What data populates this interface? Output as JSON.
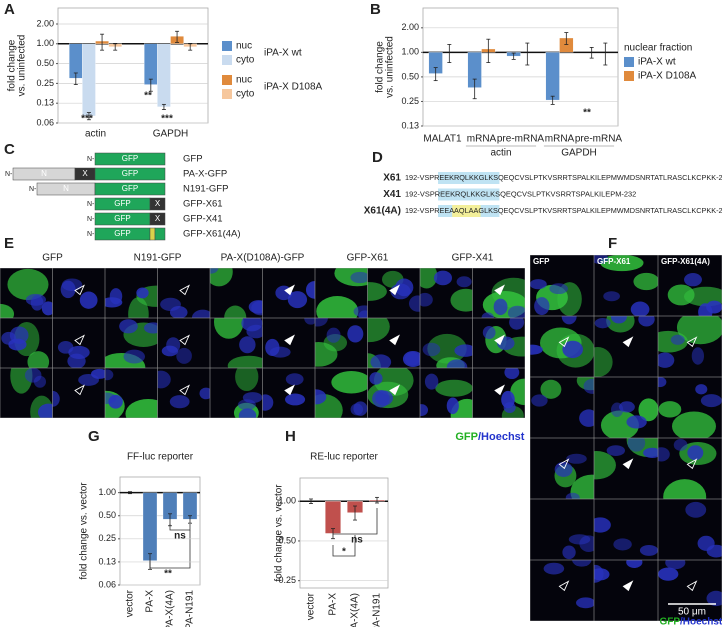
{
  "panel_labels": [
    "A",
    "B",
    "C",
    "D",
    "E",
    "F",
    "G",
    "H"
  ],
  "chart_data": [
    {
      "type": "bar",
      "y_label": [
        "fold change",
        "vs. uninfected"
      ],
      "log_scale": true,
      "grid": true,
      "ylim": [
        0.0625,
        3.5
      ],
      "yticks": [
        {
          "value": 0.0625,
          "label": "0.06"
        },
        {
          "value": 0.125,
          "label": "0.13"
        },
        0.25,
        {
          "value": 0.5,
          "label": "0.50"
        },
        {
          "value": 1,
          "label": "1.00"
        },
        {
          "value": 2,
          "label": "2.00"
        }
      ],
      "reference_line": 1,
      "categories": [
        "actin",
        "GAPDH"
      ],
      "legend_groups": [
        "iPA-X wt",
        "iPA-X D108A"
      ],
      "series": [
        {
          "name": "nuc",
          "color": "#5b8fcb",
          "values": [
            0.3,
            0.24
          ],
          "errors": [
            0.06,
            0.05
          ]
        },
        {
          "name": "cyto",
          "color": "#c9dbef",
          "values": [
            0.08,
            0.11
          ],
          "errors": [
            0.01,
            0.01
          ]
        },
        {
          "name": "nuc",
          "color": "#e08a3c",
          "values": [
            1.1,
            1.3
          ],
          "errors": [
            0.3,
            0.25
          ]
        },
        {
          "name": "cyto",
          "color": "#f6c79d",
          "values": [
            0.9,
            0.9
          ],
          "errors": [
            0.1,
            0.1
          ]
        }
      ],
      "annotations": [
        "***",
        "**",
        "***"
      ]
    },
    {
      "type": "bar",
      "y_label": [
        "fold change",
        "vs. uninfected"
      ],
      "log_scale": true,
      "grid": true,
      "ylim": [
        0.125,
        3.5
      ],
      "yticks": [
        {
          "value": 0.125,
          "label": "0.13"
        },
        0.25,
        {
          "value": 0.5,
          "label": "0.50"
        },
        {
          "value": 1,
          "label": "1.00"
        },
        {
          "value": 2,
          "label": "2.00"
        }
      ],
      "reference_line": 1,
      "categories": [
        "MALAT1",
        "mRNA",
        "pre-mRNA",
        "mRNA",
        "pre-mRNA"
      ],
      "category_groups": [
        "actin",
        "GAPDH"
      ],
      "legend_title": "nuclear fraction",
      "series": [
        {
          "name": "iPA-X wt",
          "color": "#5b8fcb",
          "values": [
            0.55,
            0.37,
            0.9,
            0.26,
            1.0
          ],
          "errors": [
            0.1,
            0.1,
            0.08,
            0.03,
            0.15
          ]
        },
        {
          "name": "iPA-X D108A",
          "color": "#e08a3c",
          "values": [
            1.0,
            1.1,
            1.0,
            1.5,
            1.0
          ],
          "errors": [
            0.25,
            0.35,
            0.3,
            0.25,
            0.3
          ]
        }
      ],
      "annotations": [
        "**"
      ]
    },
    {
      "type": "bar",
      "title": "FF-luc reporter",
      "y_label": "fold change vs. vector",
      "log_scale": true,
      "grid": true,
      "ylim": [
        0.0625,
        1.6
      ],
      "yticks": [
        {
          "value": 0.0625,
          "label": "0.06"
        },
        {
          "value": 0.125,
          "label": "0.13"
        },
        0.25,
        {
          "value": 0.5,
          "label": "0.50"
        },
        {
          "value": 1,
          "label": "1.00"
        }
      ],
      "reference_line": 1,
      "categories": [
        "vector",
        "PA-X",
        "PA-X(4A)",
        "PA-N191"
      ],
      "color": "#4f7fb9",
      "values": [
        1.0,
        0.13,
        0.45,
        0.45
      ],
      "errors": [
        0.03,
        0.03,
        0.08,
        0.05
      ],
      "annotations": [
        "**",
        "ns"
      ]
    },
    {
      "type": "bar",
      "title": "RE-luc reporter",
      "y_label": "fold change vs. vector",
      "log_scale": true,
      "grid": true,
      "ylim": [
        0.22,
        1.5
      ],
      "yticks": [
        0.25,
        {
          "value": 0.5,
          "label": "0.50"
        },
        {
          "value": 1,
          "label": "1.00"
        }
      ],
      "reference_line": 1,
      "categories": [
        "vector",
        "PA-X",
        "PA-X(4A)",
        "PA-N191"
      ],
      "color": "#c0504d",
      "values": [
        1.0,
        0.57,
        0.82,
        1.02
      ],
      "errors": [
        0.04,
        0.05,
        0.1,
        0.05
      ],
      "annotations": [
        "*",
        "ns"
      ]
    }
  ],
  "constructs": [
    {
      "name": "GFP",
      "parts": [
        "N-",
        "GFP"
      ]
    },
    {
      "name": "PA-X-GFP",
      "parts": [
        "N-",
        "N",
        "X",
        "GFP"
      ]
    },
    {
      "name": "N191-GFP",
      "parts": [
        "N-",
        "N",
        "GFP"
      ]
    },
    {
      "name": "GFP-X61",
      "parts": [
        "N-",
        "GFP",
        "X"
      ]
    },
    {
      "name": "GFP-X41",
      "parts": [
        "N-",
        "GFP",
        "X"
      ]
    },
    {
      "name": "GFP-X61(4A)",
      "parts": [
        "N-",
        "GFP"
      ]
    }
  ],
  "sequences": [
    {
      "name": "X61",
      "sequence": "192-VSPREEKRQLKKGLKSQEQCVSLPTKVSRRTSPALKILEPMWMDSNRTATLRASCLKCPKK-252"
    },
    {
      "name": "X41",
      "sequence": "192-VSPREEKRQLKKGLKSQEQCVSLPTKVSRRTSPALKILEPM-232"
    },
    {
      "name": "X61(4A)",
      "sequence": "192-VSPREEAAQLAAGLKSQEQCVSLPTKVSRRTSPALKILEPMWMDSNRTATLRASCLKCPKK-252"
    }
  ],
  "panel_e": {
    "columns": [
      "GFP",
      "N191-GFP",
      "PA-X(D108A)-GFP",
      "GFP-X61",
      "GFP-X41"
    ],
    "caption": [
      "GFP",
      "/Hoechst"
    ]
  },
  "panel_f": {
    "columns": [
      "GFP",
      "GFP-X61",
      "GFP-X61(4A)"
    ],
    "scale": "50 μm",
    "caption": [
      "GFP",
      "/Hoechst"
    ]
  }
}
